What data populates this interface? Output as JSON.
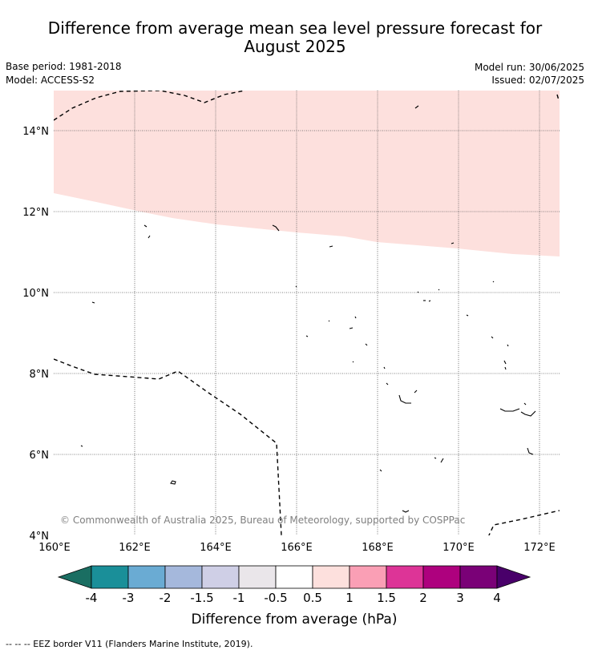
{
  "title_line1": "Difference from average mean sea level pressure forecast for",
  "title_line2": "August 2025",
  "base_period": "Base period: 1981-2018",
  "model": "Model: ACCESS-S2",
  "model_run": "Model run: 30/06/2025",
  "issued": "Issued: 02/07/2025",
  "copyright": "© Commonwealth of Australia 2025, Bureau of Meteorology, supported by COSPPac",
  "lat_labels": [
    "14°N",
    "12°N",
    "10°N",
    "8°N",
    "6°N",
    "4°N"
  ],
  "lon_labels": [
    "160°E",
    "162°E",
    "164°E",
    "166°E",
    "168°E",
    "170°E",
    "172°E"
  ],
  "colorbar": {
    "ticks": [
      "-4",
      "-3",
      "-2",
      "-1.5",
      "-1",
      "-0.5",
      "0.5",
      "1",
      "1.5",
      "2",
      "3",
      "4"
    ],
    "colors": [
      "#1a6e62",
      "#1a8f99",
      "#6aabd3",
      "#a5b8dc",
      "#cfcfe6",
      "#eae6ea",
      "#ffffff",
      "#fde0dd",
      "#fa9fb5",
      "#dd3497",
      "#ae017e",
      "#7a0177",
      "#49006a"
    ],
    "label": "Difference from average (hPa)"
  },
  "legend_note": "-- -- -- EEZ border V11 (Flanders Marine Institute, 2019)."
}
